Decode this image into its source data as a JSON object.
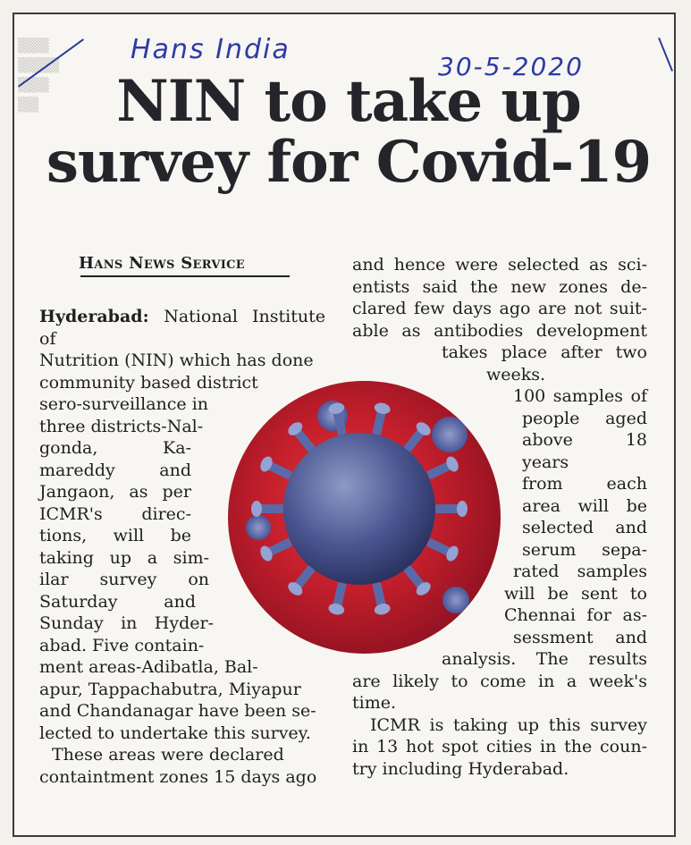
{
  "handwritten": {
    "publication": "Hans India",
    "date": "30-5-2020"
  },
  "headline": {
    "line1": "NIN to take up",
    "line2": "survey for Covid-19"
  },
  "byline": "Hans News Service",
  "article": {
    "dateline": "Hyderabad:",
    "col1": [
      "National Institute of",
      "Nutrition (NIN) which has done",
      "community based district",
      "sero-surveillance in",
      "three districts-Nal-",
      "gonda, Ka-",
      "mareddy and",
      "Jangaon, as per",
      "ICMR's direc-",
      "tions, will be",
      "taking up a sim-",
      "ilar survey on",
      "Saturday and",
      "Sunday in Hyder-",
      "abad. Five contain-",
      "ment areas-Adibatla, Bal-",
      "apur, Tappachabutra, Miyapur",
      "and Chandanagar have been se-",
      "lected to undertake this survey.",
      "These areas were declared",
      "containtment zones 15 days ago"
    ],
    "col2": [
      "and hence were selected as sci-",
      "entists said the new zones de-",
      "clared few days ago are not suit-",
      "able as antibodies development",
      "takes place after two",
      "weeks.",
      "100 samples of",
      "people aged",
      "above 18 years",
      "from each",
      "area will be",
      "selected and",
      "serum sepa-",
      "rated samples",
      "will be sent to",
      "Chennai for as-",
      "sessment and",
      "analysis. The results",
      "are likely to come in a week's",
      "time.",
      "ICMR is taking up this survey",
      "in 13 hot spot cities in the coun-",
      "try including Hyderabad."
    ]
  },
  "colors": {
    "ink": "#1f1e22",
    "pen": "#2d3aa6",
    "virus_red": "#c41f2c",
    "virus_blue": "#4a5590"
  }
}
